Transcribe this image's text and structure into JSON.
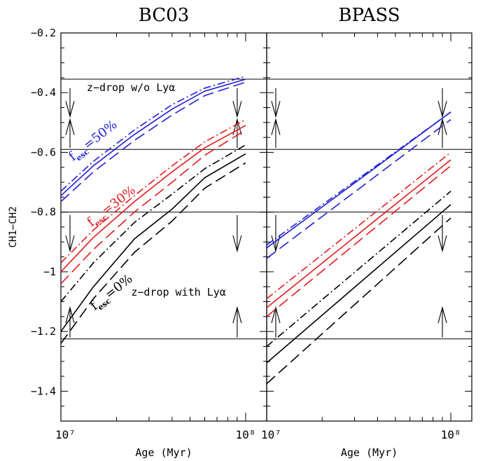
{
  "chart_data": {
    "type": "line",
    "ylabel": "CH1−CH2",
    "ylim": [
      -1.5,
      -0.2
    ],
    "yticks": [
      "−0.2",
      "−0.4",
      "−0.6",
      "−0.8",
      "−1",
      "−1.2",
      "−1.4"
    ],
    "ytick_values": [
      -0.2,
      -0.4,
      -0.6,
      -0.8,
      -1.0,
      -1.2,
      -1.4
    ],
    "line_style_legend": "solid, dashed, dash-dot",
    "colors": {
      "f50": "#1f1fd6",
      "f30": "#e31a1c",
      "f0": "#000000"
    },
    "panels": [
      {
        "title": "BC03",
        "xlabel": "Age (Myr)",
        "xscale": "log",
        "xlim": [
          10000000,
          130000000
        ],
        "xtick_labels": [
          "10⁷",
          "10⁸"
        ],
        "xtick_values": [
          10000000,
          100000000
        ],
        "hlines": [
          -0.355,
          -0.59,
          -0.8,
          -1.225
        ],
        "arrows": [
          {
            "x": 11200000,
            "dir": "down",
            "y_from": -0.385,
            "y_to": -0.48
          },
          {
            "x": 11200000,
            "dir": "up",
            "y_from": -0.585,
            "y_to": -0.49
          },
          {
            "x": 90000000,
            "dir": "down",
            "y_from": -0.385,
            "y_to": -0.48
          },
          {
            "x": 90000000,
            "dir": "up",
            "y_from": -0.585,
            "y_to": -0.49
          },
          {
            "x": 11200000,
            "dir": "down",
            "y_from": -0.81,
            "y_to": -0.93
          },
          {
            "x": 11200000,
            "dir": "up",
            "y_from": -1.22,
            "y_to": -1.12
          },
          {
            "x": 90000000,
            "dir": "down",
            "y_from": -0.81,
            "y_to": -0.93
          },
          {
            "x": 90000000,
            "dir": "up",
            "y_from": -1.22,
            "y_to": -1.12
          }
        ],
        "annotations": [
          {
            "text": "z−drop w/o Lyα",
            "x": 13800000,
            "y": -0.395,
            "color": "#000000",
            "rotate": 0
          },
          {
            "text": "z−drop with Lyα",
            "x": 24000000,
            "y": -1.08,
            "color": "#000000",
            "rotate": 0
          }
        ],
        "fesc_labels": [
          {
            "main": "f",
            "sub": "esc",
            "value": "=50%",
            "x": 11600000,
            "y": -0.63,
            "color": "#1f1fd6",
            "rotate": -38
          },
          {
            "main": "f",
            "sub": "esc",
            "value": "=30%",
            "x": 14600000,
            "y": -0.85,
            "color": "#e31a1c",
            "rotate": -38
          },
          {
            "main": "f",
            "sub": "esc",
            "value": "=0%",
            "x": 15200000,
            "y": -1.13,
            "color": "#000000",
            "rotate": -38
          }
        ],
        "series": [
          {
            "color": "#1f1fd6",
            "style": "solid",
            "x": [
              10000000,
              15000000,
              25000000,
              40000000,
              60000000,
              100000000
            ],
            "y": [
              -0.745,
              -0.645,
              -0.54,
              -0.455,
              -0.395,
              -0.355
            ]
          },
          {
            "color": "#1f1fd6",
            "style": "dashed",
            "x": [
              10000000,
              15000000,
              25000000,
              40000000,
              60000000,
              100000000
            ],
            "y": [
              -0.765,
              -0.665,
              -0.56,
              -0.475,
              -0.41,
              -0.365
            ]
          },
          {
            "color": "#1f1fd6",
            "style": "dashdot",
            "x": [
              10000000,
              15000000,
              25000000,
              40000000,
              60000000,
              100000000
            ],
            "y": [
              -0.73,
              -0.63,
              -0.525,
              -0.44,
              -0.385,
              -0.345
            ]
          },
          {
            "color": "#e31a1c",
            "style": "solid",
            "x": [
              10000000,
              15000000,
              25000000,
              40000000,
              60000000,
              100000000
            ],
            "y": [
              -1.0,
              -0.885,
              -0.765,
              -0.665,
              -0.585,
              -0.51
            ]
          },
          {
            "color": "#e31a1c",
            "style": "dashed",
            "x": [
              10000000,
              15000000,
              25000000,
              40000000,
              60000000,
              100000000
            ],
            "y": [
              -1.04,
              -0.925,
              -0.8,
              -0.7,
              -0.61,
              -0.525
            ]
          },
          {
            "color": "#e31a1c",
            "style": "dashdot",
            "x": [
              10000000,
              15000000,
              25000000,
              40000000,
              60000000,
              100000000
            ],
            "y": [
              -0.97,
              -0.86,
              -0.745,
              -0.645,
              -0.565,
              -0.49
            ]
          },
          {
            "color": "#000000",
            "style": "solid",
            "x": [
              10000000,
              15000000,
              25000000,
              40000000,
              60000000,
              100000000
            ],
            "y": [
              -1.2,
              -1.05,
              -0.89,
              -0.79,
              -0.685,
              -0.605
            ]
          },
          {
            "color": "#000000",
            "style": "dashed",
            "x": [
              10000000,
              15000000,
              25000000,
              40000000,
              60000000,
              100000000
            ],
            "y": [
              -1.24,
              -1.09,
              -0.935,
              -0.83,
              -0.72,
              -0.635
            ]
          },
          {
            "color": "#000000",
            "style": "dashdot",
            "x": [
              10000000,
              15000000,
              25000000,
              40000000,
              60000000,
              100000000
            ],
            "y": [
              -1.1,
              -0.97,
              -0.835,
              -0.74,
              -0.655,
              -0.575
            ]
          }
        ]
      },
      {
        "title": "BPASS",
        "xlabel": "Age (Myr)",
        "xscale": "log",
        "xlim": [
          10000000,
          130000000
        ],
        "xtick_labels": [
          "10⁷",
          "10⁸"
        ],
        "xtick_values": [
          10000000,
          100000000
        ],
        "hlines": [
          -0.355,
          -0.59,
          -0.8,
          -1.225
        ],
        "arrows": [
          {
            "x": 11200000,
            "dir": "down",
            "y_from": -0.385,
            "y_to": -0.48
          },
          {
            "x": 11200000,
            "dir": "up",
            "y_from": -0.585,
            "y_to": -0.49
          },
          {
            "x": 90000000,
            "dir": "down",
            "y_from": -0.385,
            "y_to": -0.48
          },
          {
            "x": 90000000,
            "dir": "up",
            "y_from": -0.585,
            "y_to": -0.49
          },
          {
            "x": 11200000,
            "dir": "down",
            "y_from": -0.81,
            "y_to": -0.93
          },
          {
            "x": 11200000,
            "dir": "up",
            "y_from": -1.22,
            "y_to": -1.12
          },
          {
            "x": 90000000,
            "dir": "down",
            "y_from": -0.81,
            "y_to": -0.93
          },
          {
            "x": 90000000,
            "dir": "up",
            "y_from": -1.22,
            "y_to": -1.12
          }
        ],
        "annotations": [],
        "fesc_labels": [],
        "series": [
          {
            "color": "#1f1fd6",
            "style": "solid",
            "x": [
              10000000,
              100000000
            ],
            "y": [
              -0.92,
              -0.465
            ]
          },
          {
            "color": "#1f1fd6",
            "style": "dashed",
            "x": [
              10000000,
              100000000
            ],
            "y": [
              -0.955,
              -0.49
            ]
          },
          {
            "color": "#1f1fd6",
            "style": "dashdot",
            "x": [
              10000000,
              100000000
            ],
            "y": [
              -0.91,
              -0.465
            ]
          },
          {
            "color": "#e31a1c",
            "style": "solid",
            "x": [
              10000000,
              100000000
            ],
            "y": [
              -1.12,
              -0.625
            ]
          },
          {
            "color": "#e31a1c",
            "style": "dashed",
            "x": [
              10000000,
              100000000
            ],
            "y": [
              -1.15,
              -0.645
            ]
          },
          {
            "color": "#e31a1c",
            "style": "dashdot",
            "x": [
              10000000,
              100000000
            ],
            "y": [
              -1.09,
              -0.6
            ]
          },
          {
            "color": "#000000",
            "style": "solid",
            "x": [
              10000000,
              100000000
            ],
            "y": [
              -1.305,
              -0.775
            ]
          },
          {
            "color": "#000000",
            "style": "dashed",
            "x": [
              10000000,
              100000000
            ],
            "y": [
              -1.375,
              -0.82
            ]
          },
          {
            "color": "#000000",
            "style": "dashdot",
            "x": [
              10000000,
              100000000
            ],
            "y": [
              -1.25,
              -0.73
            ]
          }
        ]
      }
    ]
  }
}
